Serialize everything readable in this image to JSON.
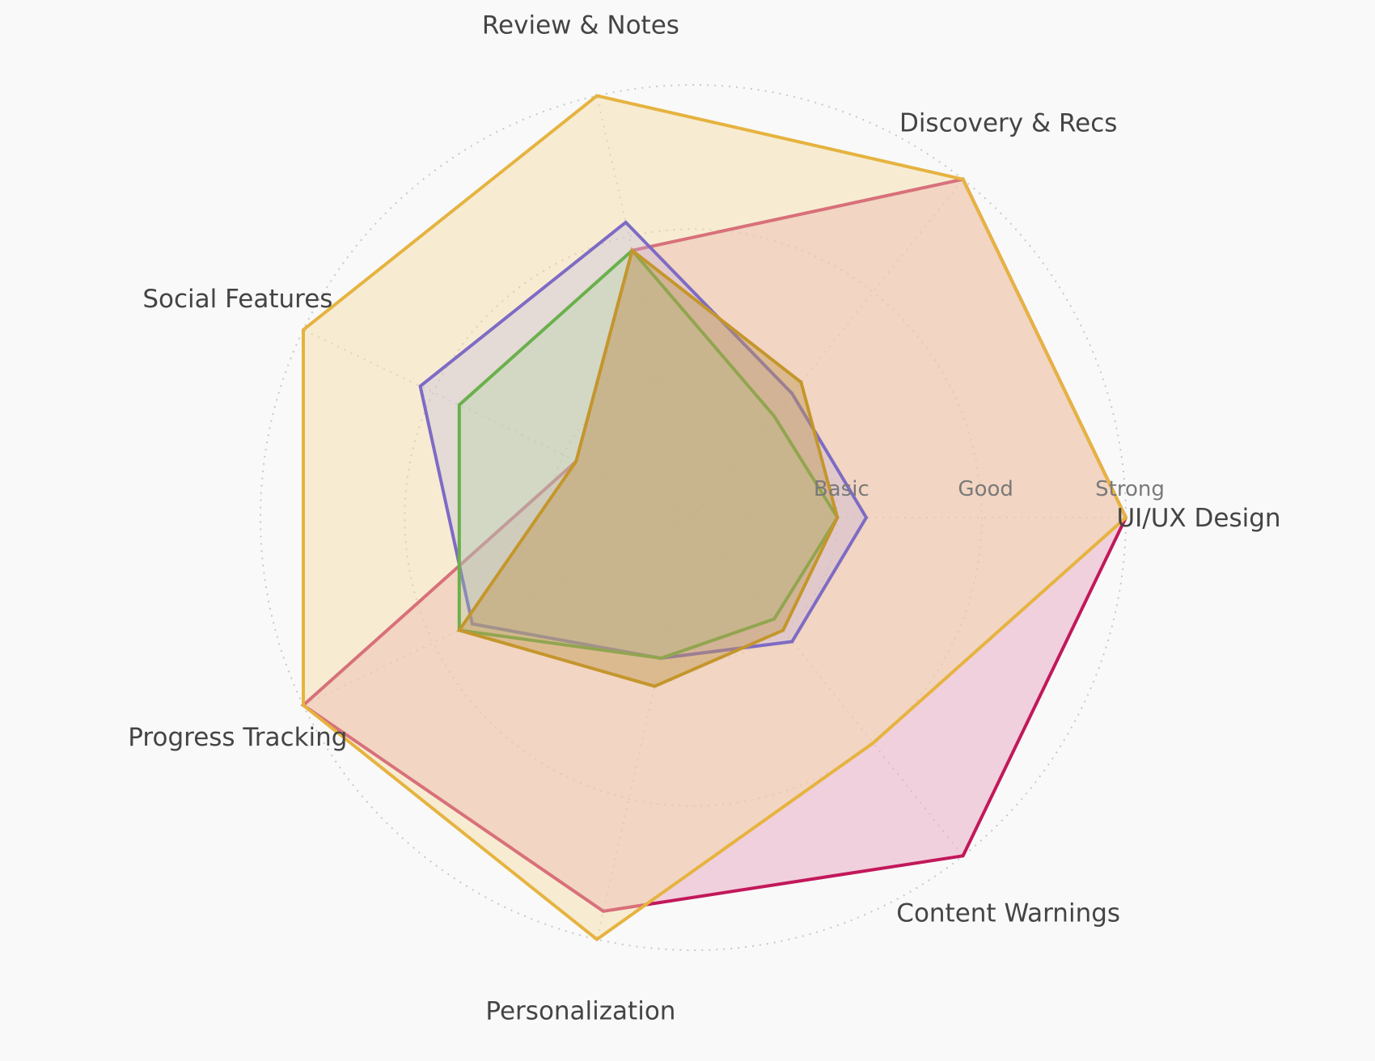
{
  "chart_data": {
    "type": "radar",
    "axes": [
      "UI/UX Design",
      "Discovery & Recs",
      "Review & Notes",
      "Social Features",
      "Progress Tracking",
      "Personalization",
      "Content Warnings"
    ],
    "levels": [
      "Basic",
      "Good",
      "Strong"
    ],
    "range": [
      0,
      3
    ],
    "series": [
      {
        "color": "#c2185b",
        "fill": "#e8a7c0",
        "fill_opacity": 0.5,
        "values": [
          3.0,
          3.0,
          1.9,
          0.9,
          3.0,
          2.8,
          3.0
        ]
      },
      {
        "color": "#e6b340",
        "fill": "#f4dba2",
        "fill_opacity": 0.45,
        "values": [
          3.0,
          3.0,
          3.0,
          3.0,
          3.0,
          3.0,
          2.0
        ]
      },
      {
        "color": "#7e6bc4",
        "fill": "#b8aee0",
        "fill_opacity": 0.3,
        "values": [
          1.2,
          1.1,
          2.1,
          2.1,
          1.7,
          1.0,
          1.1
        ]
      },
      {
        "color": "#6ab04c",
        "fill": "#a9d39a",
        "fill_opacity": 0.3,
        "values": [
          1.0,
          0.9,
          1.9,
          1.8,
          1.8,
          1.0,
          0.9
        ]
      },
      {
        "color": "#c4962c",
        "fill": "#c09a55",
        "fill_opacity": 0.45,
        "values": [
          1.0,
          1.2,
          1.9,
          0.9,
          1.8,
          1.2,
          1.0
        ]
      }
    ],
    "grid": true,
    "legend": "none"
  }
}
